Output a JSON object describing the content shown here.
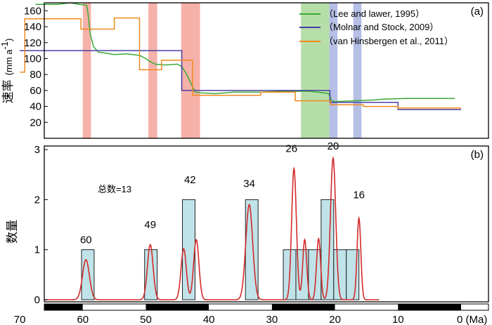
{
  "chart_data": [
    {
      "panel": "(a)",
      "type": "line",
      "ylabel_main": "速率",
      "ylabel_unit": "(mm a",
      "ylabel_sup": "-1",
      "ylabel_close": ")",
      "ylim": [
        0,
        170
      ],
      "xlim": [
        70,
        0
      ],
      "yticks": [
        "20",
        "40",
        "60",
        "80",
        "100",
        "120",
        "140",
        "160"
      ],
      "ytick_values": [
        20,
        40,
        60,
        80,
        100,
        120,
        140,
        160
      ],
      "legend_placement": "top-right",
      "shaded_bands": [
        {
          "from": 60.0,
          "to": 58.7,
          "color": "#f4a39a"
        },
        {
          "from": 49.6,
          "to": 48.2,
          "color": "#f4a39a"
        },
        {
          "from": 44.4,
          "to": 41.4,
          "color": "#f4a39a"
        },
        {
          "from": 25.4,
          "to": 20.9,
          "color": "#a9d89a"
        },
        {
          "from": 20.9,
          "to": 19.6,
          "color": "#a9b4e0"
        },
        {
          "from": 17.1,
          "to": 15.8,
          "color": "#a9b4e0"
        }
      ],
      "series": [
        {
          "name": "（Lee and lawer, 1995）",
          "color": "#3aaa35",
          "step": false,
          "points": [
            [
              67.5,
              168
            ],
            [
              64,
              168
            ],
            [
              62,
              170
            ],
            [
              60.5,
              168
            ],
            [
              59.4,
              167
            ],
            [
              59.2,
              158
            ],
            [
              58.8,
              130
            ],
            [
              58.3,
              115
            ],
            [
              57.5,
              108
            ],
            [
              56.5,
              107
            ],
            [
              55,
              105
            ],
            [
              53,
              106
            ],
            [
              51,
              104
            ],
            [
              50,
              100
            ],
            [
              49.5,
              97
            ],
            [
              48.5,
              93
            ],
            [
              47,
              92
            ],
            [
              45,
              93
            ],
            [
              44.3,
              90
            ],
            [
              43.5,
              80
            ],
            [
              42.8,
              68
            ],
            [
              42.2,
              58
            ],
            [
              41.4,
              57
            ],
            [
              39,
              56
            ],
            [
              36,
              58
            ],
            [
              32,
              58
            ],
            [
              28,
              59
            ],
            [
              24,
              59
            ],
            [
              21.8,
              57
            ],
            [
              21,
              56
            ],
            [
              20.5,
              47
            ],
            [
              20,
              46
            ],
            [
              17,
              47
            ],
            [
              14,
              48
            ],
            [
              12.5,
              49
            ],
            [
              9,
              50
            ],
            [
              4,
              50
            ],
            [
              1,
              50
            ]
          ]
        },
        {
          "name": "（Molnar and Stock, 2009）",
          "color": "#4b3ea4",
          "step": true,
          "points": [
            [
              70,
              110
            ],
            [
              44.3,
              110
            ],
            [
              44.3,
              60
            ],
            [
              20.8,
              60
            ],
            [
              20.8,
              45
            ],
            [
              10,
              45
            ],
            [
              10,
              36
            ],
            [
              0,
              36
            ]
          ]
        },
        {
          "name": "（van Hinsbergen et al., 2011）",
          "color": "#ef8a1e",
          "step": true,
          "points": [
            [
              70,
              83
            ],
            [
              69.2,
              83
            ],
            [
              69.2,
              150
            ],
            [
              60.3,
              150
            ],
            [
              60.3,
              137
            ],
            [
              55,
              137
            ],
            [
              55,
              151
            ],
            [
              51,
              151
            ],
            [
              51,
              86
            ],
            [
              47.5,
              86
            ],
            [
              47.5,
              98
            ],
            [
              42.6,
              98
            ],
            [
              42.6,
              54
            ],
            [
              31.8,
              54
            ],
            [
              31.8,
              58
            ],
            [
              26.3,
              58
            ],
            [
              26.3,
              47
            ],
            [
              20.7,
              47
            ],
            [
              20.7,
              42
            ],
            [
              15.5,
              42
            ],
            [
              15.5,
              40
            ],
            [
              10,
              40
            ],
            [
              10,
              38
            ],
            [
              0,
              38
            ]
          ]
        }
      ]
    },
    {
      "panel": "(b)",
      "type": "bar",
      "ylabel": "数量",
      "ylim": [
        0,
        3
      ],
      "yticks": [
        "0",
        "1",
        "2",
        "3"
      ],
      "ytick_values": [
        0,
        1,
        2,
        3
      ],
      "xlim": [
        70,
        0
      ],
      "xticks": [
        "70",
        "60",
        "50",
        "40",
        "30",
        "20",
        "10",
        "0 (Ma)"
      ],
      "xtick_values": [
        70,
        60,
        50,
        40,
        30,
        20,
        10,
        0
      ],
      "annotation_total": "总数=13",
      "histogram_bins": [
        {
          "from": 60.2,
          "to": 58.2,
          "count": 1
        },
        {
          "from": 50.2,
          "to": 48.2,
          "count": 1
        },
        {
          "from": 44.2,
          "to": 42.2,
          "count": 2
        },
        {
          "from": 34.2,
          "to": 32.2,
          "count": 2
        },
        {
          "from": 28.2,
          "to": 26.2,
          "count": 1
        },
        {
          "from": 26.2,
          "to": 24.2,
          "count": 1
        },
        {
          "from": 24.2,
          "to": 22.2,
          "count": 1
        },
        {
          "from": 22.2,
          "to": 20.2,
          "count": 2
        },
        {
          "from": 20.2,
          "to": 18.2,
          "count": 1
        },
        {
          "from": 18.2,
          "to": 16.2,
          "count": 1
        }
      ],
      "peak_labels": [
        {
          "text": "60",
          "x": 59.5,
          "y": 1.13
        },
        {
          "text": "49",
          "x": 49.3,
          "y": 1.43
        },
        {
          "text": "42",
          "x": 43.0,
          "y": 2.33
        },
        {
          "text": "34",
          "x": 33.6,
          "y": 2.25
        },
        {
          "text": "26",
          "x": 26.9,
          "y": 2.95
        },
        {
          "text": "20",
          "x": 20.3,
          "y": 3.0
        },
        {
          "text": "16",
          "x": 16.2,
          "y": 2.03
        }
      ],
      "density_curve": {
        "color": "#d42a2a",
        "peaks": [
          {
            "x": 59.5,
            "height": 0.8,
            "width": 0.55
          },
          {
            "x": 49.3,
            "height": 1.1,
            "width": 0.45
          },
          {
            "x": 44.0,
            "height": 1.02,
            "width": 0.42
          },
          {
            "x": 42.0,
            "height": 1.2,
            "width": 0.42
          },
          {
            "x": 33.6,
            "height": 1.9,
            "width": 0.55
          },
          {
            "x": 26.5,
            "height": 2.62,
            "width": 0.38
          },
          {
            "x": 24.8,
            "height": 1.2,
            "width": 0.32
          },
          {
            "x": 22.6,
            "height": 1.22,
            "width": 0.32
          },
          {
            "x": 20.3,
            "height": 2.83,
            "width": 0.42
          },
          {
            "x": 16.2,
            "height": 1.63,
            "width": 0.3
          }
        ]
      },
      "timescale_bar": [
        {
          "from": 70,
          "to": 60,
          "color": "black"
        },
        {
          "from": 60,
          "to": 50,
          "color": "white"
        },
        {
          "from": 50,
          "to": 40,
          "color": "black"
        },
        {
          "from": 40,
          "to": 30,
          "color": "white"
        },
        {
          "from": 30,
          "to": 20,
          "color": "black"
        },
        {
          "from": 20,
          "to": 10,
          "color": "white"
        },
        {
          "from": 10,
          "to": 0,
          "color": "black"
        }
      ]
    }
  ],
  "colors": {
    "hist_fill": "#bfe3e8",
    "hist_stroke": "#222222",
    "axis": "#000000"
  }
}
